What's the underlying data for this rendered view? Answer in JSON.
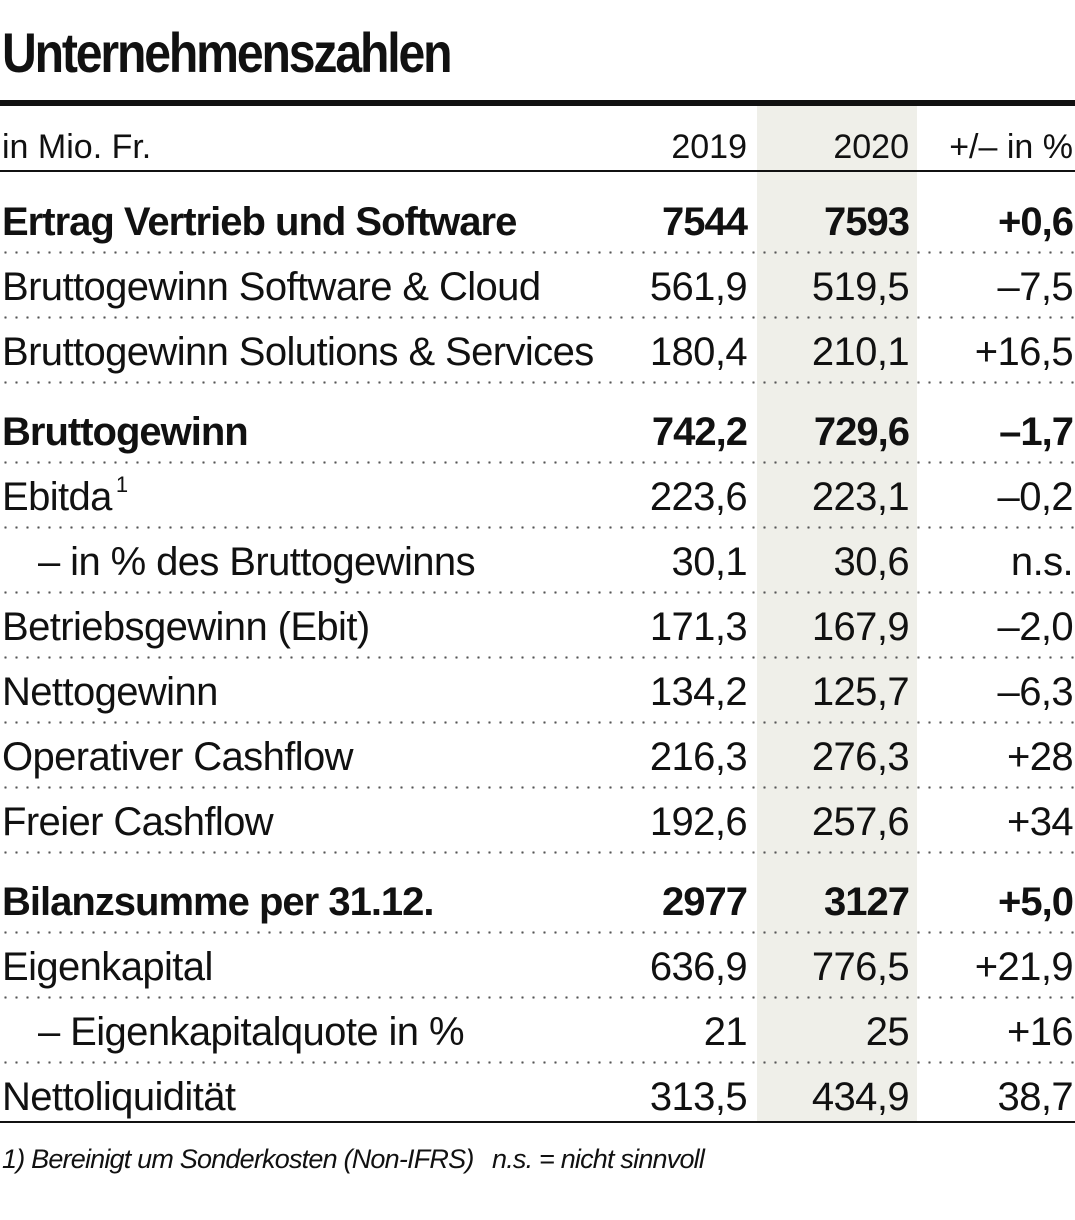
{
  "title": "Unternehmenszahlen",
  "header": {
    "unit": "in Mio. Fr.",
    "col1": "2019",
    "col2": "2020",
    "col3": "+/– in %"
  },
  "rows": [
    {
      "label": "Ertrag Vertrieb und Software",
      "v2019": "7544",
      "v2020": "7593",
      "change": "+0,6"
    },
    {
      "label": "Bruttogewinn Software & Cloud",
      "v2019": "561,9",
      "v2020": "519,5",
      "change": "–7,5"
    },
    {
      "label": "Bruttogewinn Solutions & Services",
      "v2019": "180,4",
      "v2020": "210,1",
      "change": "+16,5"
    },
    {
      "label": "Bruttogewinn",
      "v2019": "742,2",
      "v2020": "729,6",
      "change": "–1,7"
    },
    {
      "label": "Ebitda",
      "footnote_mark": "1",
      "v2019": "223,6",
      "v2020": "223,1",
      "change": "–0,2"
    },
    {
      "label": "– in % des Bruttogewinns",
      "v2019": "30,1",
      "v2020": "30,6",
      "change": "n.s."
    },
    {
      "label": "Betriebsgewinn (Ebit)",
      "v2019": "171,3",
      "v2020": "167,9",
      "change": "–2,0"
    },
    {
      "label": "Nettogewinn",
      "v2019": "134,2",
      "v2020": "125,7",
      "change": "–6,3"
    },
    {
      "label": "Operativer Cashflow",
      "v2019": "216,3",
      "v2020": "276,3",
      "change": "+28"
    },
    {
      "label": "Freier Cashflow",
      "v2019": "192,6",
      "v2020": "257,6",
      "change": "+34"
    },
    {
      "label": "Bilanzsumme per 31.12.",
      "v2019": "2977",
      "v2020": "3127",
      "change": "+5,0"
    },
    {
      "label": "Eigenkapital",
      "v2019": "636,9",
      "v2020": "776,5",
      "change": "+21,9"
    },
    {
      "label": "– Eigenkapitalquote in %",
      "v2019": "21",
      "v2020": "25",
      "change": "+16"
    },
    {
      "label": "Nettoliquidität",
      "v2019": "313,5",
      "v2020": "434,9",
      "change": "38,7"
    }
  ],
  "footnotes": {
    "note1": "1) Bereinigt um Sonderkosten (Non-IFRS)",
    "note2": "n.s. = nicht sinnvoll"
  },
  "colors": {
    "highlight_column": "#efefe9",
    "text": "#111111"
  }
}
